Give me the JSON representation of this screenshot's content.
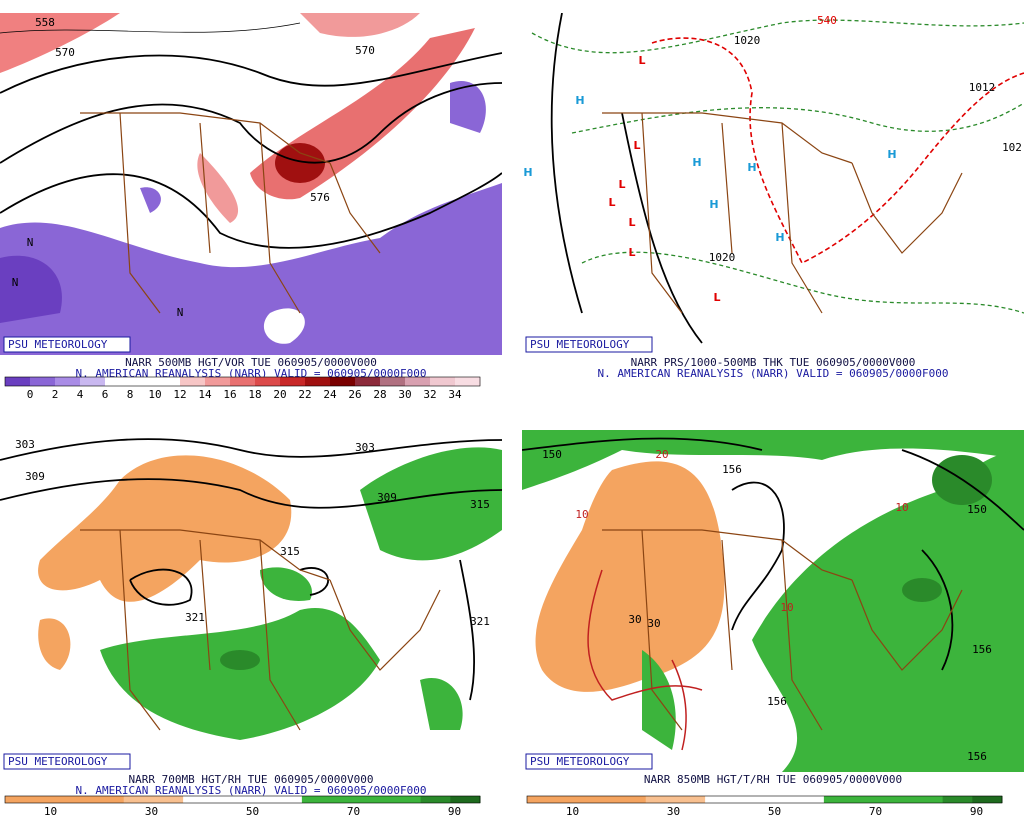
{
  "panels": [
    {
      "badge": "PSU METEOROLOGY",
      "caption": [
        "NARR 500MB HGT/VOR TUE 060905/0000V000",
        "N. AMERICAN REANALYSIS (NARR) VALID = 060905/0000F000"
      ],
      "colorbar": {
        "labels": [
          0,
          2,
          4,
          6,
          8,
          10,
          12,
          14,
          16,
          18,
          20,
          22,
          24,
          26,
          28,
          30,
          32,
          34
        ],
        "colors": [
          "#6a3fc0",
          "#8a66d6",
          "#a98ce6",
          "#c9b8f0",
          "#ffffff",
          "#ffffff",
          "#ffffff",
          "#f7c6c6",
          "#f19a9a",
          "#e87070",
          "#dc4a4a",
          "#c82828",
          "#a01010",
          "#7a0000",
          "#8c2a3a",
          "#b07080",
          "#d8a0b0",
          "#f0c8d0",
          "#f8dde3"
        ]
      },
      "map_labels": [
        {
          "text": "558",
          "color": "#000000"
        },
        {
          "text": "570",
          "color": "#000000"
        },
        {
          "text": "570",
          "color": "#000000"
        },
        {
          "text": "576",
          "color": "#000000"
        },
        {
          "text": "N",
          "color": "#000000"
        },
        {
          "text": "N",
          "color": "#000000"
        },
        {
          "text": "N",
          "color": "#000000"
        }
      ]
    },
    {
      "badge": "PSU METEOROLOGY",
      "caption": [
        "NARR PRS/1000-500MB THK TUE 060905/0000V000",
        "N. AMERICAN REANALYSIS (NARR) VALID = 060905/0000F000"
      ],
      "map_labels": [
        {
          "text": "540",
          "color": "#e00000"
        },
        {
          "text": "1020",
          "color": "#000000"
        },
        {
          "text": "1012",
          "color": "#000000"
        },
        {
          "text": "1020",
          "color": "#000000"
        },
        {
          "text": "102",
          "color": "#000000"
        },
        {
          "text": "H",
          "color": "#1a9ad6"
        },
        {
          "text": "H",
          "color": "#1a9ad6"
        },
        {
          "text": "H",
          "color": "#1a9ad6"
        },
        {
          "text": "H",
          "color": "#1a9ad6"
        },
        {
          "text": "H",
          "color": "#1a9ad6"
        },
        {
          "text": "H",
          "color": "#1a9ad6"
        },
        {
          "text": "H",
          "color": "#1a9ad6"
        },
        {
          "text": "L",
          "color": "#e00000"
        },
        {
          "text": "L",
          "color": "#e00000"
        },
        {
          "text": "L",
          "color": "#e00000"
        },
        {
          "text": "L",
          "color": "#e00000"
        },
        {
          "text": "L",
          "color": "#e00000"
        },
        {
          "text": "L",
          "color": "#e00000"
        },
        {
          "text": "L",
          "color": "#e00000"
        }
      ]
    },
    {
      "badge": "PSU METEOROLOGY",
      "caption": [
        "NARR 700MB HGT/RH TUE 060905/0000V000",
        "N. AMERICAN REANALYSIS (NARR) VALID = 060905/0000F000"
      ],
      "colorbar": {
        "labels": [
          10,
          30,
          50,
          70,
          90
        ],
        "colors": [
          "#f4a460",
          "#f4a460",
          "#f4a460",
          "#f4a460",
          "#f8c090",
          "#f8c090",
          "#ffffff",
          "#ffffff",
          "#ffffff",
          "#ffffff",
          "#3cb43c",
          "#3cb43c",
          "#3cb43c",
          "#3cb43c",
          "#2a8a2a",
          "#1e6a1e"
        ]
      },
      "map_labels": [
        {
          "text": "303",
          "color": "#000000"
        },
        {
          "text": "309",
          "color": "#000000"
        },
        {
          "text": "303",
          "color": "#000000"
        },
        {
          "text": "309",
          "color": "#000000"
        },
        {
          "text": "315",
          "color": "#000000"
        },
        {
          "text": "315",
          "color": "#000000"
        },
        {
          "text": "321",
          "color": "#000000"
        },
        {
          "text": "321",
          "color": "#000000"
        }
      ]
    },
    {
      "badge": "PSU METEOROLOGY",
      "caption": [
        "NARR 850MB HGT/T/RH TUE 060905/0000V000"
      ],
      "colorbar": {
        "labels": [
          10,
          30,
          50,
          70,
          90
        ],
        "colors": [
          "#f4a460",
          "#f4a460",
          "#f4a460",
          "#f4a460",
          "#f8c090",
          "#f8c090",
          "#ffffff",
          "#ffffff",
          "#ffffff",
          "#ffffff",
          "#3cb43c",
          "#3cb43c",
          "#3cb43c",
          "#3cb43c",
          "#2a8a2a",
          "#1e6a1e"
        ]
      },
      "map_labels": [
        {
          "text": "150",
          "color": "#000000"
        },
        {
          "text": "156",
          "color": "#000000"
        },
        {
          "text": "150",
          "color": "#000000"
        },
        {
          "text": "156",
          "color": "#000000"
        },
        {
          "text": "156",
          "color": "#000000"
        },
        {
          "text": "156",
          "color": "#000000"
        },
        {
          "text": "20",
          "color": "#c02020"
        },
        {
          "text": "10",
          "color": "#c02020"
        },
        {
          "text": "30",
          "color": "#000000"
        },
        {
          "text": "30",
          "color": "#000000"
        },
        {
          "text": "10",
          "color": "#c02020"
        },
        {
          "text": "10",
          "color": "#c02020"
        }
      ]
    }
  ]
}
